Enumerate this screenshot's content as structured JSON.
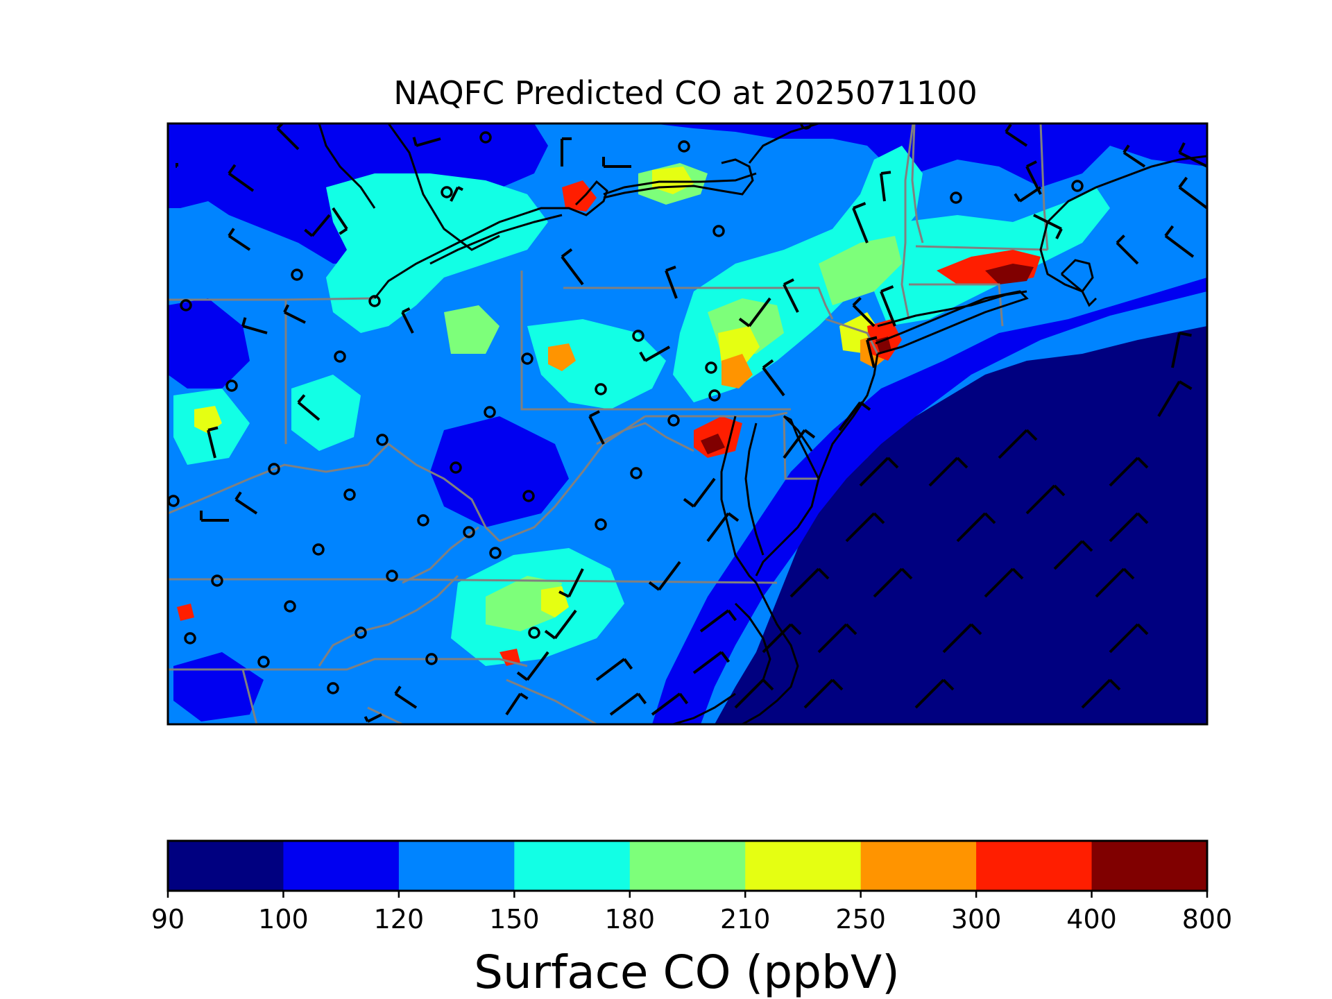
{
  "figure": {
    "title": "NAQFC Predicted CO at 2025071100"
  },
  "colorbar": {
    "label": "Surface CO (ppbV)",
    "bounds": [
      90,
      100,
      120,
      150,
      180,
      210,
      250,
      300,
      400,
      800
    ],
    "tick_labels": [
      "90",
      "100",
      "120",
      "150",
      "180",
      "210",
      "250",
      "300",
      "400",
      "800"
    ],
    "colors": [
      "#000080",
      "#0000f1",
      "#0084ff",
      "#12ffe5",
      "#7dff7a",
      "#e5ff12",
      "#ff9400",
      "#ff1e00",
      "#800000"
    ]
  },
  "map": {
    "colors": {
      "ocean": "#000080",
      "low": "#0000f1",
      "background": "#0084ff",
      "state_border": "#808080",
      "coastline": "#000000",
      "frame": "#000000"
    },
    "legend_icons": [
      "wind-barb-icon",
      "station-circle-icon"
    ]
  }
}
